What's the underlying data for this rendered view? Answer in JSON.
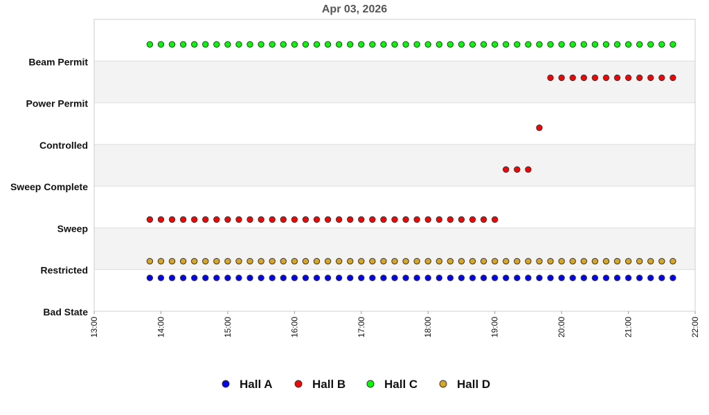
{
  "chart_data": {
    "type": "scatter",
    "title": "Apr 03, 2026",
    "categories": [
      "Bad State",
      "Restricted",
      "Sweep",
      "Sweep Complete",
      "Controlled",
      "Power Permit",
      "Beam Permit"
    ],
    "x_ticks": [
      "13:00",
      "14:00",
      "15:00",
      "16:00",
      "17:00",
      "18:00",
      "19:00",
      "20:00",
      "21:00",
      "22:00"
    ],
    "xlim": [
      "13:00",
      "22:00"
    ],
    "grid": "horizontal alternating bands",
    "legend_position": "bottom",
    "series": [
      {
        "name": "Hall A",
        "color": "#0000ff",
        "points": [
          {
            "start": "13:50",
            "end": "21:40",
            "step_min": 10,
            "y": 0.8
          }
        ]
      },
      {
        "name": "Hall B",
        "color": "#ff0000",
        "points": [
          {
            "start": "13:50",
            "end": "19:00",
            "step_min": 10,
            "y": 2.2
          },
          {
            "start": "19:10",
            "end": "19:30",
            "step_min": 10,
            "y": 3.4
          },
          {
            "start": "19:40",
            "end": "19:40",
            "step_min": 10,
            "y": 4.4
          },
          {
            "start": "19:50",
            "end": "21:40",
            "step_min": 10,
            "y": 5.6
          }
        ]
      },
      {
        "name": "Hall C",
        "color": "#00ff00",
        "points": [
          {
            "start": "13:50",
            "end": "21:40",
            "step_min": 10,
            "y": 6.4
          }
        ]
      },
      {
        "name": "Hall D",
        "color": "#daa520",
        "points": [
          {
            "start": "13:50",
            "end": "21:40",
            "step_min": 10,
            "y": 1.2
          }
        ]
      }
    ]
  }
}
